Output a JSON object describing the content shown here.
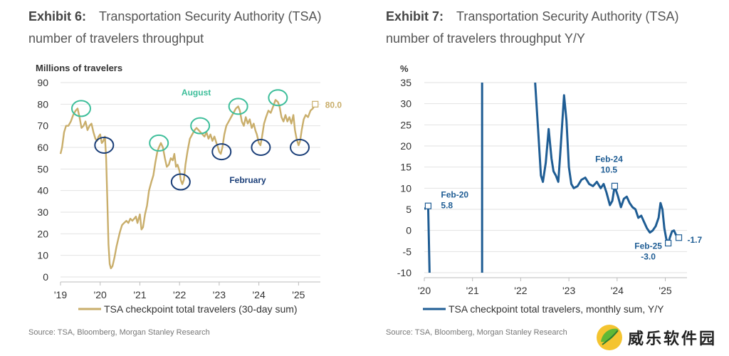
{
  "exhibit6": {
    "label": "Exhibit 6:",
    "title": "Transportation Security Authority (TSA) number of travelers throughput",
    "source": "Source: TSA, Bloomberg, Morgan Stanley Research"
  },
  "exhibit7": {
    "label": "Exhibit 7:",
    "title": "Transportation Security Authority (TSA) number of travelers throughput Y/Y",
    "source": "Source: TSA, Bloomberg, Morgan Stanley Research"
  },
  "watermark": {
    "text": "威乐软件园"
  },
  "colors": {
    "gold": "#C9AE6B",
    "blue": "#1F5D94",
    "teal": "#3DBE9A",
    "navy": "#1A3E78",
    "grid": "#E2E2E2"
  },
  "chart_data": [
    {
      "type": "line",
      "title": "TSA number of travelers throughput",
      "ylabel": "Millions of travelers",
      "ylim": [
        0,
        90
      ],
      "yticks": [
        0,
        10,
        20,
        30,
        40,
        50,
        60,
        70,
        80,
        90
      ],
      "xlim": [
        2019,
        2025.55
      ],
      "xticks": [
        2019,
        2020,
        2021,
        2022,
        2023,
        2024,
        2025
      ],
      "xtick_labels": [
        "'19",
        "'20",
        "'21",
        "'22",
        "'23",
        "'24",
        "'25"
      ],
      "series": [
        {
          "name": "TSA checkpoint total travelers (30-day sum)",
          "color": "#C9AE6B",
          "points": [
            [
              2019.0,
              57
            ],
            [
              2019.04,
              60
            ],
            [
              2019.09,
              67
            ],
            [
              2019.14,
              70
            ],
            [
              2019.2,
              70
            ],
            [
              2019.26,
              72
            ],
            [
              2019.32,
              75
            ],
            [
              2019.38,
              77
            ],
            [
              2019.43,
              78
            ],
            [
              2019.48,
              74
            ],
            [
              2019.53,
              69
            ],
            [
              2019.58,
              70
            ],
            [
              2019.63,
              72
            ],
            [
              2019.68,
              68
            ],
            [
              2019.73,
              70
            ],
            [
              2019.78,
              71
            ],
            [
              2019.83,
              67
            ],
            [
              2019.88,
              64
            ],
            [
              2019.92,
              63
            ],
            [
              2019.96,
              65
            ],
            [
              2020.0,
              66
            ],
            [
              2020.04,
              62
            ],
            [
              2020.08,
              63
            ],
            [
              2020.12,
              65
            ],
            [
              2020.15,
              55
            ],
            [
              2020.18,
              35
            ],
            [
              2020.21,
              15
            ],
            [
              2020.24,
              6
            ],
            [
              2020.27,
              4
            ],
            [
              2020.31,
              5
            ],
            [
              2020.36,
              9
            ],
            [
              2020.41,
              14
            ],
            [
              2020.46,
              18
            ],
            [
              2020.5,
              21
            ],
            [
              2020.55,
              24
            ],
            [
              2020.6,
              25
            ],
            [
              2020.66,
              26
            ],
            [
              2020.71,
              25
            ],
            [
              2020.76,
              27
            ],
            [
              2020.81,
              26
            ],
            [
              2020.86,
              27
            ],
            [
              2020.9,
              28
            ],
            [
              2020.94,
              25
            ],
            [
              2021.0,
              29
            ],
            [
              2021.04,
              22
            ],
            [
              2021.08,
              23
            ],
            [
              2021.13,
              29
            ],
            [
              2021.18,
              33
            ],
            [
              2021.23,
              40
            ],
            [
              2021.29,
              44
            ],
            [
              2021.34,
              47
            ],
            [
              2021.39,
              53
            ],
            [
              2021.44,
              58
            ],
            [
              2021.48,
              60
            ],
            [
              2021.53,
              62
            ],
            [
              2021.58,
              60
            ],
            [
              2021.63,
              55
            ],
            [
              2021.68,
              51
            ],
            [
              2021.73,
              52
            ],
            [
              2021.78,
              55
            ],
            [
              2021.83,
              54
            ],
            [
              2021.87,
              57
            ],
            [
              2021.91,
              51
            ],
            [
              2021.95,
              52
            ],
            [
              2022.0,
              49
            ],
            [
              2022.03,
              45
            ],
            [
              2022.07,
              43
            ],
            [
              2022.11,
              45
            ],
            [
              2022.15,
              52
            ],
            [
              2022.2,
              58
            ],
            [
              2022.26,
              64
            ],
            [
              2022.32,
              66
            ],
            [
              2022.38,
              68
            ],
            [
              2022.43,
              69
            ],
            [
              2022.48,
              68
            ],
            [
              2022.53,
              67
            ],
            [
              2022.58,
              66
            ],
            [
              2022.63,
              65
            ],
            [
              2022.68,
              67
            ],
            [
              2022.73,
              64
            ],
            [
              2022.78,
              66
            ],
            [
              2022.83,
              63
            ],
            [
              2022.88,
              65
            ],
            [
              2022.93,
              62
            ],
            [
              2022.97,
              60
            ],
            [
              2023.0,
              58
            ],
            [
              2023.04,
              57
            ],
            [
              2023.08,
              60
            ],
            [
              2023.13,
              66
            ],
            [
              2023.18,
              70
            ],
            [
              2023.24,
              72
            ],
            [
              2023.3,
              74
            ],
            [
              2023.36,
              76
            ],
            [
              2023.42,
              78
            ],
            [
              2023.48,
              79
            ],
            [
              2023.52,
              77
            ],
            [
              2023.57,
              72
            ],
            [
              2023.62,
              70
            ],
            [
              2023.67,
              74
            ],
            [
              2023.72,
              71
            ],
            [
              2023.77,
              73
            ],
            [
              2023.82,
              69
            ],
            [
              2023.87,
              71
            ],
            [
              2023.91,
              68
            ],
            [
              2023.95,
              66
            ],
            [
              2024.0,
              62
            ],
            [
              2024.04,
              61
            ],
            [
              2024.08,
              65
            ],
            [
              2024.13,
              71
            ],
            [
              2024.18,
              74
            ],
            [
              2024.24,
              77
            ],
            [
              2024.3,
              76
            ],
            [
              2024.36,
              79
            ],
            [
              2024.42,
              82
            ],
            [
              2024.48,
              81
            ],
            [
              2024.52,
              79
            ],
            [
              2024.57,
              74
            ],
            [
              2024.62,
              72
            ],
            [
              2024.67,
              75
            ],
            [
              2024.72,
              72
            ],
            [
              2024.77,
              74
            ],
            [
              2024.82,
              71
            ],
            [
              2024.87,
              75
            ],
            [
              2024.91,
              68
            ],
            [
              2024.95,
              64
            ],
            [
              2025.0,
              61
            ],
            [
              2025.04,
              63
            ],
            [
              2025.08,
              68
            ],
            [
              2025.13,
              73
            ],
            [
              2025.18,
              75
            ],
            [
              2025.24,
              74
            ],
            [
              2025.3,
              77
            ],
            [
              2025.36,
              78
            ],
            [
              2025.42,
              80
            ]
          ]
        }
      ],
      "highlight_circles": [
        {
          "group": "August",
          "color": "#3DBE9A",
          "x": 2019.52,
          "y": 78
        },
        {
          "group": "August",
          "color": "#3DBE9A",
          "x": 2021.48,
          "y": 62
        },
        {
          "group": "August",
          "color": "#3DBE9A",
          "x": 2022.52,
          "y": 70
        },
        {
          "group": "August",
          "color": "#3DBE9A",
          "x": 2023.48,
          "y": 79
        },
        {
          "group": "August",
          "color": "#3DBE9A",
          "x": 2024.48,
          "y": 83
        },
        {
          "group": "February",
          "color": "#1A3E78",
          "x": 2020.1,
          "y": 61
        },
        {
          "group": "February",
          "color": "#1A3E78",
          "x": 2022.03,
          "y": 44
        },
        {
          "group": "February",
          "color": "#1A3E78",
          "x": 2023.06,
          "y": 58
        },
        {
          "group": "February",
          "color": "#1A3E78",
          "x": 2024.05,
          "y": 60
        },
        {
          "group": "February",
          "color": "#1A3E78",
          "x": 2025.03,
          "y": 60
        }
      ],
      "annotations": [
        {
          "text": "August",
          "x": 2022.42,
          "y": 84,
          "color": "#3DBE9A"
        },
        {
          "text": "February",
          "x": 2023.72,
          "y": 43.5,
          "color": "#1A3E78"
        },
        {
          "text": "80.0",
          "x": 2025.42,
          "y": 80,
          "color": "#C9AE6B",
          "marker": true
        }
      ],
      "legend": {
        "label": "TSA checkpoint total travelers (30-day sum)",
        "position": "bottom"
      }
    },
    {
      "type": "line",
      "title": "TSA number of travelers throughput Y/Y",
      "ylabel": "%",
      "ylim": [
        -10,
        35
      ],
      "yticks": [
        -10,
        -5,
        0,
        5,
        10,
        15,
        20,
        25,
        30,
        35
      ],
      "xlim": [
        2020,
        2025.45
      ],
      "xticks": [
        2020,
        2021,
        2022,
        2023,
        2024,
        2025
      ],
      "xtick_labels": [
        "'20",
        "'21",
        "'22",
        "'23",
        "'24",
        "'25"
      ],
      "series": [
        {
          "name": "TSA checkpoint total travelers, monthly sum, Y/Y",
          "color": "#1F5D94",
          "segments": [
            [
              [
                2020.0,
                5.0
              ],
              [
                2020.04,
                5.5
              ],
              [
                2020.08,
                5.8
              ],
              [
                2020.11,
                -10.0
              ]
            ],
            [
              [
                2021.2,
                -10.0
              ],
              [
                2021.2,
                35.0
              ]
            ],
            [
              [
                2022.3,
                35.0
              ],
              [
                2022.36,
                24.0
              ],
              [
                2022.42,
                13.0
              ],
              [
                2022.46,
                11.5
              ],
              [
                2022.52,
                16.0
              ],
              [
                2022.58,
                24.0
              ],
              [
                2022.64,
                17.0
              ],
              [
                2022.68,
                14.0
              ],
              [
                2022.73,
                13.0
              ],
              [
                2022.78,
                11.5
              ],
              [
                2022.82,
                18.0
              ],
              [
                2022.86,
                25.0
              ],
              [
                2022.9,
                32.0
              ],
              [
                2022.95,
                26.0
              ],
              [
                2023.0,
                15.0
              ],
              [
                2023.05,
                11.0
              ],
              [
                2023.1,
                10.0
              ],
              [
                2023.18,
                10.5
              ],
              [
                2023.26,
                12.0
              ],
              [
                2023.34,
                12.5
              ],
              [
                2023.42,
                11.0
              ],
              [
                2023.5,
                10.5
              ],
              [
                2023.58,
                11.5
              ],
              [
                2023.66,
                10.0
              ],
              [
                2023.72,
                11.0
              ],
              [
                2023.78,
                9.0
              ],
              [
                2023.85,
                6.0
              ],
              [
                2023.9,
                7.0
              ],
              [
                2023.95,
                10.5
              ],
              [
                2024.02,
                8.0
              ],
              [
                2024.08,
                5.5
              ],
              [
                2024.14,
                7.5
              ],
              [
                2024.2,
                8.0
              ],
              [
                2024.26,
                6.5
              ],
              [
                2024.32,
                5.5
              ],
              [
                2024.38,
                5.0
              ],
              [
                2024.44,
                3.0
              ],
              [
                2024.5,
                3.5
              ],
              [
                2024.56,
                2.0
              ],
              [
                2024.62,
                0.5
              ],
              [
                2024.68,
                -0.5
              ],
              [
                2024.74,
                0.0
              ],
              [
                2024.8,
                1.0
              ],
              [
                2024.86,
                3.0
              ],
              [
                2024.9,
                6.5
              ],
              [
                2024.94,
                5.0
              ],
              [
                2024.98,
                0.5
              ],
              [
                2025.02,
                -2.0
              ],
              [
                2025.06,
                -3.0
              ],
              [
                2025.1,
                -1.5
              ],
              [
                2025.14,
                -0.2
              ],
              [
                2025.18,
                0.0
              ],
              [
                2025.22,
                -1.0
              ],
              [
                2025.28,
                -1.7
              ]
            ]
          ]
        }
      ],
      "annotations": [
        {
          "label": "Feb-20",
          "value": "5.8",
          "x": 2020.08,
          "y": 5.8
        },
        {
          "label": "Feb-24",
          "value": "10.5",
          "x": 2023.95,
          "y": 10.5
        },
        {
          "label": "Feb-25",
          "value": "-3.0",
          "x": 2025.06,
          "y": -3.0
        },
        {
          "label": "",
          "value": "-1.7",
          "x": 2025.28,
          "y": -1.7
        }
      ],
      "legend": {
        "label": "TSA checkpoint total travelers, monthly sum, Y/Y",
        "position": "bottom"
      }
    }
  ]
}
